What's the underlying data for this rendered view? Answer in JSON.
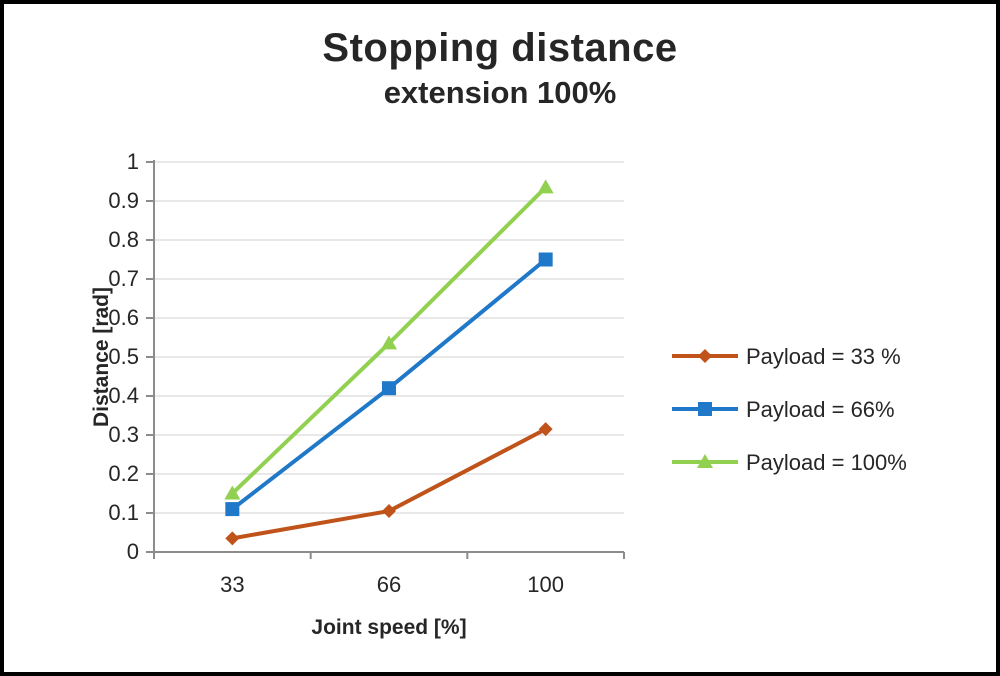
{
  "frame": {
    "background": "#ffffff",
    "border_color": "#000000"
  },
  "chart_data": {
    "type": "line",
    "title": "Stopping distance",
    "subtitle": "extension 100%",
    "xlabel": "Joint speed [%]",
    "ylabel": "Distance [rad]",
    "categories": [
      "33",
      "66",
      "100"
    ],
    "ylim": [
      0,
      1
    ],
    "ytick_step": 0.1,
    "grid": true,
    "legend_position": "right",
    "colors": {
      "grid": "#d9d9d9",
      "axis": "#8c8c8c",
      "tick_label": "#262626",
      "axis_title": "#262626"
    },
    "series": [
      {
        "name": "Payload = 33 %",
        "marker": "diamond",
        "color": "#c0531a",
        "values": [
          0.035,
          0.105,
          0.315
        ]
      },
      {
        "name": "Payload =  66%",
        "marker": "square",
        "color": "#1f78c8",
        "values": [
          0.11,
          0.42,
          0.75
        ]
      },
      {
        "name": "Payload =  100%",
        "marker": "triangle",
        "color": "#92d050",
        "values": [
          0.15,
          0.535,
          0.935
        ]
      }
    ]
  }
}
